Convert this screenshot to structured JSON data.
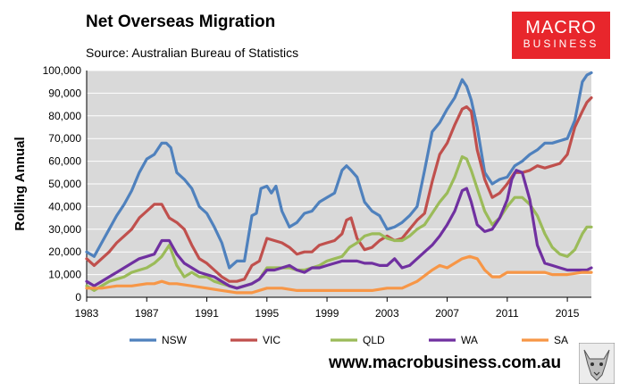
{
  "header": {
    "title": "Net Overseas Migration",
    "source": "Source: Australian Bureau of Statistics"
  },
  "logo": {
    "line1": "MACRO",
    "line2": "BUSINESS"
  },
  "footer": {
    "url": "www.macrobusiness.com.au"
  },
  "colors": {
    "plot_bg": "#d9d9d9",
    "grid": "#ffffff",
    "logo_bg": "#e8262c",
    "NSW": "#4f81bd",
    "VIC": "#c0504d",
    "QLD": "#9bbb59",
    "WA": "#7030a0",
    "SA": "#f79646"
  },
  "chart_data": {
    "type": "line",
    "title": "Net Overseas Migration",
    "ylabel": "Rolling Annual",
    "xlabel": "",
    "ylim": [
      0,
      100000
    ],
    "xlim": [
      1983,
      2016.6
    ],
    "yticks": [
      "0",
      "10,000",
      "20,000",
      "30,000",
      "40,000",
      "50,000",
      "60,000",
      "70,000",
      "80,000",
      "90,000",
      "100,000"
    ],
    "ytick_values": [
      0,
      10000,
      20000,
      30000,
      40000,
      50000,
      60000,
      70000,
      80000,
      90000,
      100000
    ],
    "xticks": [
      "1983",
      "1987",
      "1991",
      "1995",
      "1999",
      "2003",
      "2007",
      "2011",
      "2015"
    ],
    "xtick_values": [
      1983,
      1987,
      1991,
      1995,
      1999,
      2003,
      2007,
      2011,
      2015
    ],
    "legend_position": "bottom",
    "series": [
      {
        "name": "NSW",
        "x": [
          1983,
          1983.5,
          1984,
          1984.5,
          1985,
          1985.5,
          1986,
          1986.5,
          1987,
          1987.5,
          1988,
          1988.3,
          1988.6,
          1989,
          1989.5,
          1990,
          1990.5,
          1991,
          1991.5,
          1992,
          1992.5,
          1993,
          1993.5,
          1994,
          1994.3,
          1994.6,
          1995,
          1995.3,
          1995.6,
          1996,
          1996.5,
          1997,
          1997.5,
          1998,
          1998.5,
          1999,
          1999.5,
          2000,
          2000.3,
          2000.6,
          2001,
          2001.5,
          2002,
          2002.5,
          2003,
          2003.5,
          2004,
          2004.5,
          2005,
          2005.5,
          2006,
          2006.5,
          2007,
          2007.5,
          2008,
          2008.3,
          2008.6,
          2009,
          2009.5,
          2010,
          2010.5,
          2011,
          2011.5,
          2012,
          2012.5,
          2013,
          2013.5,
          2014,
          2014.5,
          2015,
          2015.5,
          2016,
          2016.3,
          2016.6
        ],
        "values": [
          20000,
          18000,
          24000,
          30000,
          36000,
          41000,
          47000,
          55000,
          61000,
          63000,
          68000,
          68000,
          66000,
          55000,
          52000,
          48000,
          40000,
          37000,
          31000,
          24000,
          13000,
          16000,
          16000,
          36000,
          37000,
          48000,
          49000,
          46000,
          49000,
          38000,
          31000,
          33000,
          37000,
          38000,
          42000,
          44000,
          46000,
          56000,
          58000,
          56000,
          53000,
          42000,
          38000,
          36000,
          30000,
          31000,
          33000,
          36000,
          40000,
          56000,
          73000,
          77000,
          83000,
          88000,
          96000,
          93000,
          87000,
          75000,
          55000,
          50000,
          52000,
          53000,
          58000,
          60000,
          63000,
          65000,
          68000,
          68000,
          69000,
          70000,
          78000,
          95000,
          98000,
          99000
        ]
      },
      {
        "name": "VIC",
        "x": [
          1983,
          1983.5,
          1984,
          1984.5,
          1985,
          1985.5,
          1986,
          1986.5,
          1987,
          1987.5,
          1988,
          1988.5,
          1989,
          1989.5,
          1990,
          1990.5,
          1991,
          1991.5,
          1992,
          1992.5,
          1993,
          1993.5,
          1994,
          1994.5,
          1995,
          1995.5,
          1996,
          1996.5,
          1997,
          1997.5,
          1998,
          1998.5,
          1999,
          1999.5,
          2000,
          2000.3,
          2000.6,
          2001,
          2001.5,
          2002,
          2002.5,
          2003,
          2003.5,
          2004,
          2004.5,
          2005,
          2005.5,
          2006,
          2006.5,
          2007,
          2007.5,
          2008,
          2008.3,
          2008.6,
          2009,
          2009.5,
          2010,
          2010.5,
          2011,
          2011.5,
          2012,
          2012.5,
          2013,
          2013.5,
          2014,
          2014.5,
          2015,
          2015.5,
          2016,
          2016.3,
          2016.6
        ],
        "values": [
          17000,
          14000,
          17000,
          20000,
          24000,
          27000,
          30000,
          35000,
          38000,
          41000,
          41000,
          35000,
          33000,
          30000,
          23000,
          17000,
          15000,
          12000,
          9000,
          7000,
          7000,
          8000,
          14000,
          16000,
          26000,
          25000,
          24000,
          22000,
          19000,
          20000,
          20000,
          23000,
          24000,
          25000,
          28000,
          34000,
          35000,
          26000,
          21000,
          22000,
          25000,
          27000,
          25000,
          26000,
          30000,
          34000,
          37000,
          51000,
          63000,
          68000,
          76000,
          83000,
          84000,
          82000,
          65000,
          52000,
          44000,
          46000,
          50000,
          55000,
          55000,
          56000,
          58000,
          57000,
          58000,
          59000,
          63000,
          75000,
          82000,
          86000,
          88000
        ]
      },
      {
        "name": "QLD",
        "x": [
          1983,
          1983.5,
          1984,
          1984.5,
          1985,
          1985.5,
          1986,
          1986.5,
          1987,
          1987.5,
          1988,
          1988.5,
          1989,
          1989.5,
          1990,
          1990.5,
          1991,
          1991.5,
          1992,
          1992.5,
          1993,
          1993.5,
          1994,
          1994.5,
          1995,
          1995.5,
          1996,
          1996.5,
          1997,
          1997.5,
          1998,
          1998.5,
          1999,
          1999.5,
          2000,
          2000.5,
          2001,
          2001.5,
          2002,
          2002.5,
          2003,
          2003.5,
          2004,
          2004.5,
          2005,
          2005.5,
          2006,
          2006.5,
          2007,
          2007.5,
          2008,
          2008.3,
          2008.6,
          2009,
          2009.5,
          2010,
          2010.5,
          2011,
          2011.5,
          2012,
          2012.5,
          2013,
          2013.5,
          2014,
          2014.5,
          2015,
          2015.5,
          2016,
          2016.3,
          2016.6
        ],
        "values": [
          5000,
          3000,
          5000,
          7000,
          8000,
          9000,
          11000,
          12000,
          13000,
          15000,
          18000,
          23000,
          14000,
          9000,
          11000,
          9000,
          9000,
          7000,
          6000,
          5000,
          4000,
          5000,
          6000,
          8000,
          13000,
          13000,
          13000,
          13000,
          12000,
          12000,
          13000,
          14000,
          16000,
          17000,
          18000,
          22000,
          24000,
          27000,
          28000,
          28000,
          26000,
          25000,
          25000,
          27000,
          30000,
          32000,
          37000,
          42000,
          46000,
          53000,
          62000,
          61000,
          56000,
          48000,
          38000,
          32000,
          35000,
          40000,
          44000,
          44000,
          41000,
          36000,
          28000,
          22000,
          19000,
          18000,
          21000,
          28000,
          31000,
          31000
        ]
      },
      {
        "name": "WA",
        "x": [
          1983,
          1983.5,
          1984,
          1984.5,
          1985,
          1985.5,
          1986,
          1986.5,
          1987,
          1987.5,
          1988,
          1988.5,
          1989,
          1989.5,
          1990,
          1990.5,
          1991,
          1991.5,
          1992,
          1992.5,
          1993,
          1993.5,
          1994,
          1994.5,
          1995,
          1995.5,
          1996,
          1996.5,
          1997,
          1997.5,
          1998,
          1998.5,
          1999,
          1999.5,
          2000,
          2000.5,
          2001,
          2001.5,
          2002,
          2002.5,
          2003,
          2003.5,
          2004,
          2004.5,
          2005,
          2005.5,
          2006,
          2006.5,
          2007,
          2007.5,
          2008,
          2008.3,
          2008.6,
          2009,
          2009.5,
          2010,
          2010.5,
          2011,
          2011.3,
          2011.6,
          2012,
          2012.5,
          2013,
          2013.5,
          2014,
          2014.5,
          2015,
          2015.5,
          2016,
          2016.3,
          2016.6
        ],
        "values": [
          7000,
          5000,
          7000,
          9000,
          11000,
          13000,
          15000,
          17000,
          18000,
          19000,
          25000,
          25000,
          19000,
          15000,
          13000,
          11000,
          10000,
          9000,
          7000,
          5000,
          4000,
          5000,
          6000,
          8000,
          12000,
          12000,
          13000,
          14000,
          12000,
          11000,
          13000,
          13000,
          14000,
          15000,
          16000,
          16000,
          16000,
          15000,
          15000,
          14000,
          14000,
          17000,
          13000,
          14000,
          17000,
          20000,
          23000,
          27000,
          32000,
          38000,
          47000,
          48000,
          42000,
          32000,
          29000,
          30000,
          35000,
          43000,
          52000,
          56000,
          55000,
          43000,
          23000,
          15000,
          14000,
          13000,
          12000,
          12000,
          12000,
          12000,
          13000
        ]
      },
      {
        "name": "SA",
        "x": [
          1983,
          1984,
          1985,
          1986,
          1987,
          1987.5,
          1988,
          1988.5,
          1989,
          1990,
          1991,
          1992,
          1993,
          1994,
          1995,
          1996,
          1997,
          1998,
          1999,
          2000,
          2001,
          2002,
          2003,
          2004,
          2005,
          2006,
          2006.5,
          2007,
          2007.5,
          2008,
          2008.5,
          2009,
          2009.5,
          2010,
          2010.5,
          2011,
          2011.5,
          2012,
          2012.5,
          2013,
          2013.5,
          2014,
          2015,
          2016,
          2016.6
        ],
        "values": [
          4000,
          4000,
          5000,
          5000,
          6000,
          6000,
          7000,
          6000,
          6000,
          5000,
          4000,
          3000,
          2000,
          2000,
          4000,
          4000,
          3000,
          3000,
          3000,
          3000,
          3000,
          3000,
          4000,
          4000,
          7000,
          12000,
          14000,
          13000,
          15000,
          17000,
          18000,
          17000,
          12000,
          9000,
          9000,
          11000,
          11000,
          11000,
          11000,
          11000,
          11000,
          10000,
          10000,
          11000,
          11000
        ]
      }
    ]
  }
}
